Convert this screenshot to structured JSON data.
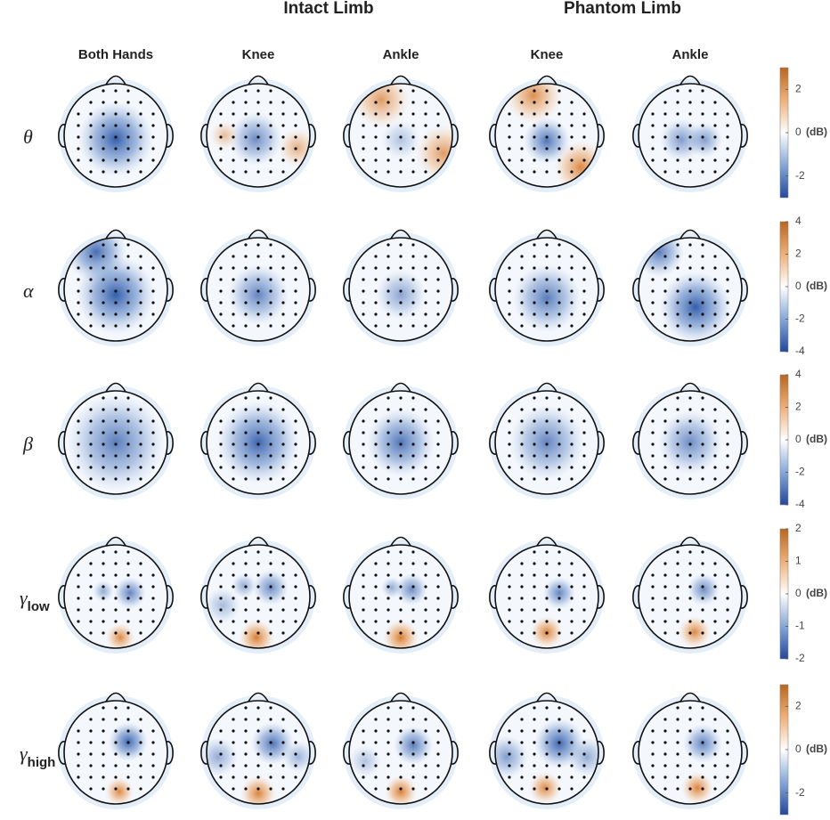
{
  "figure": {
    "group_headers": [
      "Intact Limb",
      "Phantom Limb"
    ],
    "columns": [
      "Both Hands",
      "Knee",
      "Ankle",
      "Knee",
      "Ankle"
    ],
    "unit": "(dB)",
    "rows": [
      {
        "symbol": "θ",
        "colorbar": {
          "lim": [
            -3,
            3
          ],
          "ticks": [
            -2,
            0,
            2
          ]
        }
      },
      {
        "symbol": "α",
        "colorbar": {
          "lim": [
            -4,
            4
          ],
          "ticks": [
            -4,
            -2,
            0,
            2,
            4
          ]
        }
      },
      {
        "symbol": "β",
        "colorbar": {
          "lim": [
            -4,
            4
          ],
          "ticks": [
            -4,
            -2,
            0,
            2,
            4
          ]
        }
      },
      {
        "symbol": "γ",
        "subscript": "low",
        "colorbar": {
          "lim": [
            -2,
            2
          ],
          "ticks": [
            -2,
            -1,
            0,
            1,
            2
          ]
        }
      },
      {
        "symbol": "γ",
        "subscript": "high",
        "colorbar": {
          "lim": [
            -3,
            3
          ],
          "ticks": [
            -2,
            0,
            2
          ]
        }
      }
    ]
  }
}
